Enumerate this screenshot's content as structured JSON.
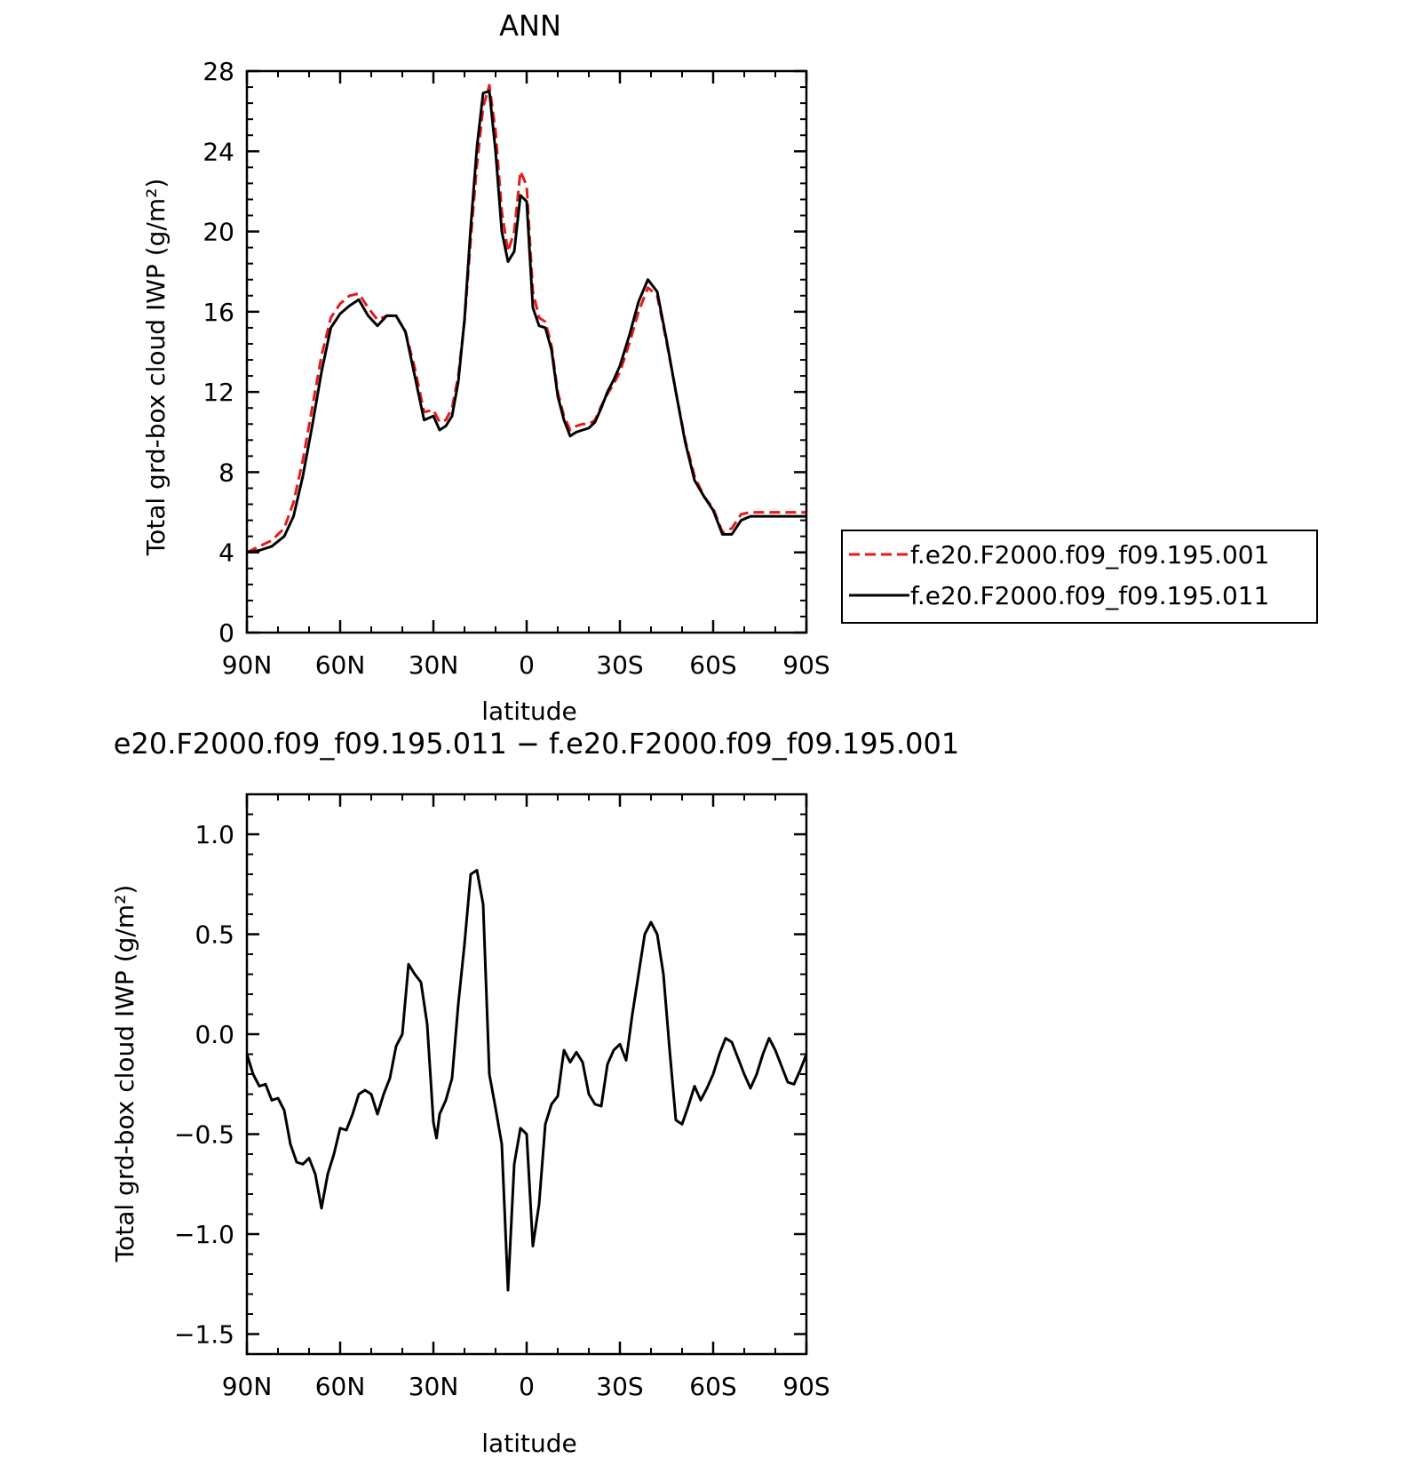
{
  "chart_data": [
    {
      "type": "line",
      "title": "ANN",
      "xlabel": "latitude",
      "ylabel": "Total grd-box cloud IWP (g/m²)",
      "x_tick_labels": [
        "90N",
        "60N",
        "30N",
        "0",
        "30S",
        "60S",
        "90S"
      ],
      "x_tick_values": [
        90,
        60,
        30,
        0,
        -30,
        -60,
        -90
      ],
      "xlim": [
        90,
        -90
      ],
      "ylim": [
        0,
        28
      ],
      "y_ticks": [
        0,
        4,
        8,
        12,
        16,
        20,
        24,
        28
      ],
      "y_tick_labels": [
        "0",
        "4",
        "8",
        "12",
        "16",
        "20",
        "24",
        "28"
      ],
      "legend_position": "right",
      "series": [
        {
          "name": "f.e20.F2000.f09_f09.195.001",
          "color": "#e41a1c",
          "style": "dashed",
          "x": [
            90,
            86,
            82,
            78,
            75,
            72,
            69,
            66,
            63,
            60,
            57,
            54,
            51,
            48,
            45,
            42,
            39,
            36,
            33,
            30,
            28,
            26,
            24,
            22,
            20,
            18,
            16,
            14,
            12,
            10,
            8,
            6,
            4,
            2,
            0,
            -2,
            -4,
            -6,
            -8,
            -10,
            -12,
            -14,
            -16,
            -18,
            -20,
            -22,
            -24,
            -26,
            -28,
            -30,
            -33,
            -36,
            -39,
            -42,
            -45,
            -48,
            -51,
            -54,
            -57,
            -60,
            -63,
            -66,
            -69,
            -72,
            -75,
            -78,
            -81,
            -84,
            -86,
            -88,
            -90
          ],
          "y": [
            4.0,
            4.3,
            4.6,
            5.2,
            6.5,
            8.6,
            11.2,
            13.8,
            15.7,
            16.4,
            16.8,
            16.9,
            16.2,
            15.6,
            15.8,
            15.8,
            15.0,
            13.2,
            11.0,
            11.1,
            10.5,
            10.6,
            11.2,
            12.8,
            15.5,
            19.6,
            23.3,
            26.2,
            27.3,
            25.0,
            21.0,
            19.0,
            20.0,
            23.0,
            22.3,
            17.0,
            15.7,
            15.5,
            14.3,
            12.0,
            10.8,
            10.1,
            10.3,
            10.4,
            10.4,
            10.6,
            11.3,
            11.9,
            12.4,
            13.0,
            14.4,
            16.0,
            17.2,
            16.8,
            14.5,
            12.0,
            9.6,
            7.8,
            6.8,
            6.2,
            5.0,
            5.2,
            5.9,
            6.0,
            6.0,
            6.0,
            6.0,
            6.0,
            6.0,
            6.0,
            6.0
          ]
        },
        {
          "name": "f.e20.F2000.f09_f09.195.011",
          "color": "#000000",
          "style": "solid",
          "x": [
            90,
            86,
            82,
            78,
            75,
            72,
            69,
            66,
            63,
            60,
            57,
            54,
            51,
            48,
            45,
            42,
            39,
            36,
            33,
            30,
            28,
            26,
            24,
            22,
            20,
            18,
            16,
            14,
            12,
            10,
            8,
            6,
            4,
            2,
            0,
            -2,
            -4,
            -6,
            -8,
            -10,
            -12,
            -14,
            -16,
            -18,
            -20,
            -22,
            -24,
            -26,
            -28,
            -30,
            -33,
            -36,
            -39,
            -42,
            -45,
            -48,
            -51,
            -54,
            -57,
            -60,
            -63,
            -66,
            -69,
            -72,
            -75,
            -78,
            -81,
            -84,
            -86,
            -88,
            -90
          ],
          "y": [
            4.0,
            4.1,
            4.3,
            4.8,
            5.8,
            7.8,
            10.3,
            13.0,
            15.2,
            15.9,
            16.3,
            16.6,
            15.8,
            15.3,
            15.8,
            15.8,
            15.0,
            12.8,
            10.6,
            10.8,
            10.1,
            10.3,
            10.8,
            12.5,
            15.6,
            20.2,
            24.2,
            26.9,
            27.0,
            24.0,
            20.0,
            18.5,
            19.0,
            21.8,
            21.5,
            16.2,
            15.3,
            15.2,
            14.1,
            11.8,
            10.6,
            9.8,
            10.0,
            10.1,
            10.2,
            10.5,
            11.2,
            12.0,
            12.6,
            13.3,
            14.8,
            16.5,
            17.6,
            17.0,
            14.6,
            12.0,
            9.5,
            7.6,
            6.8,
            6.1,
            4.9,
            4.9,
            5.6,
            5.8,
            5.8,
            5.8,
            5.8,
            5.8,
            5.8,
            5.8,
            5.8
          ]
        }
      ]
    },
    {
      "type": "line",
      "title": "e20.F2000.f09_f09.195.011 − f.e20.F2000.f09_f09.195.001",
      "xlabel": "latitude",
      "ylabel": "Total grd-box cloud IWP (g/m²)",
      "x_tick_labels": [
        "90N",
        "60N",
        "30N",
        "0",
        "30S",
        "60S",
        "90S"
      ],
      "x_tick_values": [
        90,
        60,
        30,
        0,
        -30,
        -60,
        -90
      ],
      "xlim": [
        90,
        -90
      ],
      "ylim": [
        -1.6,
        1.2
      ],
      "y_ticks": [
        -1.5,
        -1.0,
        -0.5,
        0.0,
        0.5,
        1.0
      ],
      "y_tick_labels": [
        "−1.5",
        "−1.0",
        "−0.5",
        "0.0",
        "0.5",
        "1.0"
      ],
      "series": [
        {
          "color": "#000000",
          "style": "solid",
          "x": [
            90,
            88,
            86,
            84,
            82,
            80,
            78,
            76,
            74,
            72,
            70,
            68,
            66,
            64,
            62,
            60,
            58,
            56,
            54,
            52,
            50,
            48,
            46,
            44,
            42,
            40,
            38,
            36,
            34,
            32,
            30,
            29,
            28,
            26,
            24,
            22,
            20,
            18,
            16,
            14,
            12,
            10,
            8,
            6,
            4,
            2,
            0,
            -2,
            -4,
            -6,
            -8,
            -10,
            -12,
            -14,
            -16,
            -18,
            -20,
            -22,
            -24,
            -26,
            -28,
            -30,
            -32,
            -34,
            -36,
            -38,
            -40,
            -42,
            -44,
            -46,
            -48,
            -50,
            -52,
            -54,
            -56,
            -58,
            -60,
            -62,
            -64,
            -66,
            -68,
            -70,
            -72,
            -74,
            -76,
            -78,
            -80,
            -82,
            -84,
            -86,
            -88,
            -90
          ],
          "y": [
            -0.1,
            -0.2,
            -0.26,
            -0.25,
            -0.33,
            -0.32,
            -0.38,
            -0.55,
            -0.64,
            -0.65,
            -0.62,
            -0.7,
            -0.87,
            -0.7,
            -0.6,
            -0.47,
            -0.48,
            -0.4,
            -0.3,
            -0.28,
            -0.3,
            -0.4,
            -0.3,
            -0.22,
            -0.06,
            0.0,
            0.35,
            0.3,
            0.26,
            0.05,
            -0.44,
            -0.52,
            -0.4,
            -0.33,
            -0.22,
            0.15,
            0.45,
            0.8,
            0.82,
            0.65,
            -0.2,
            -0.37,
            -0.55,
            -1.28,
            -0.65,
            -0.47,
            -0.5,
            -1.06,
            -0.85,
            -0.45,
            -0.35,
            -0.31,
            -0.08,
            -0.14,
            -0.09,
            -0.14,
            -0.3,
            -0.35,
            -0.36,
            -0.15,
            -0.08,
            -0.05,
            -0.13,
            0.1,
            0.3,
            0.5,
            0.56,
            0.5,
            0.3,
            -0.08,
            -0.43,
            -0.45,
            -0.36,
            -0.26,
            -0.33,
            -0.27,
            -0.2,
            -0.1,
            -0.02,
            -0.04,
            -0.12,
            -0.2,
            -0.27,
            -0.2,
            -0.1,
            -0.02,
            -0.08,
            -0.16,
            -0.24,
            -0.25,
            -0.18,
            -0.1
          ]
        }
      ]
    }
  ]
}
